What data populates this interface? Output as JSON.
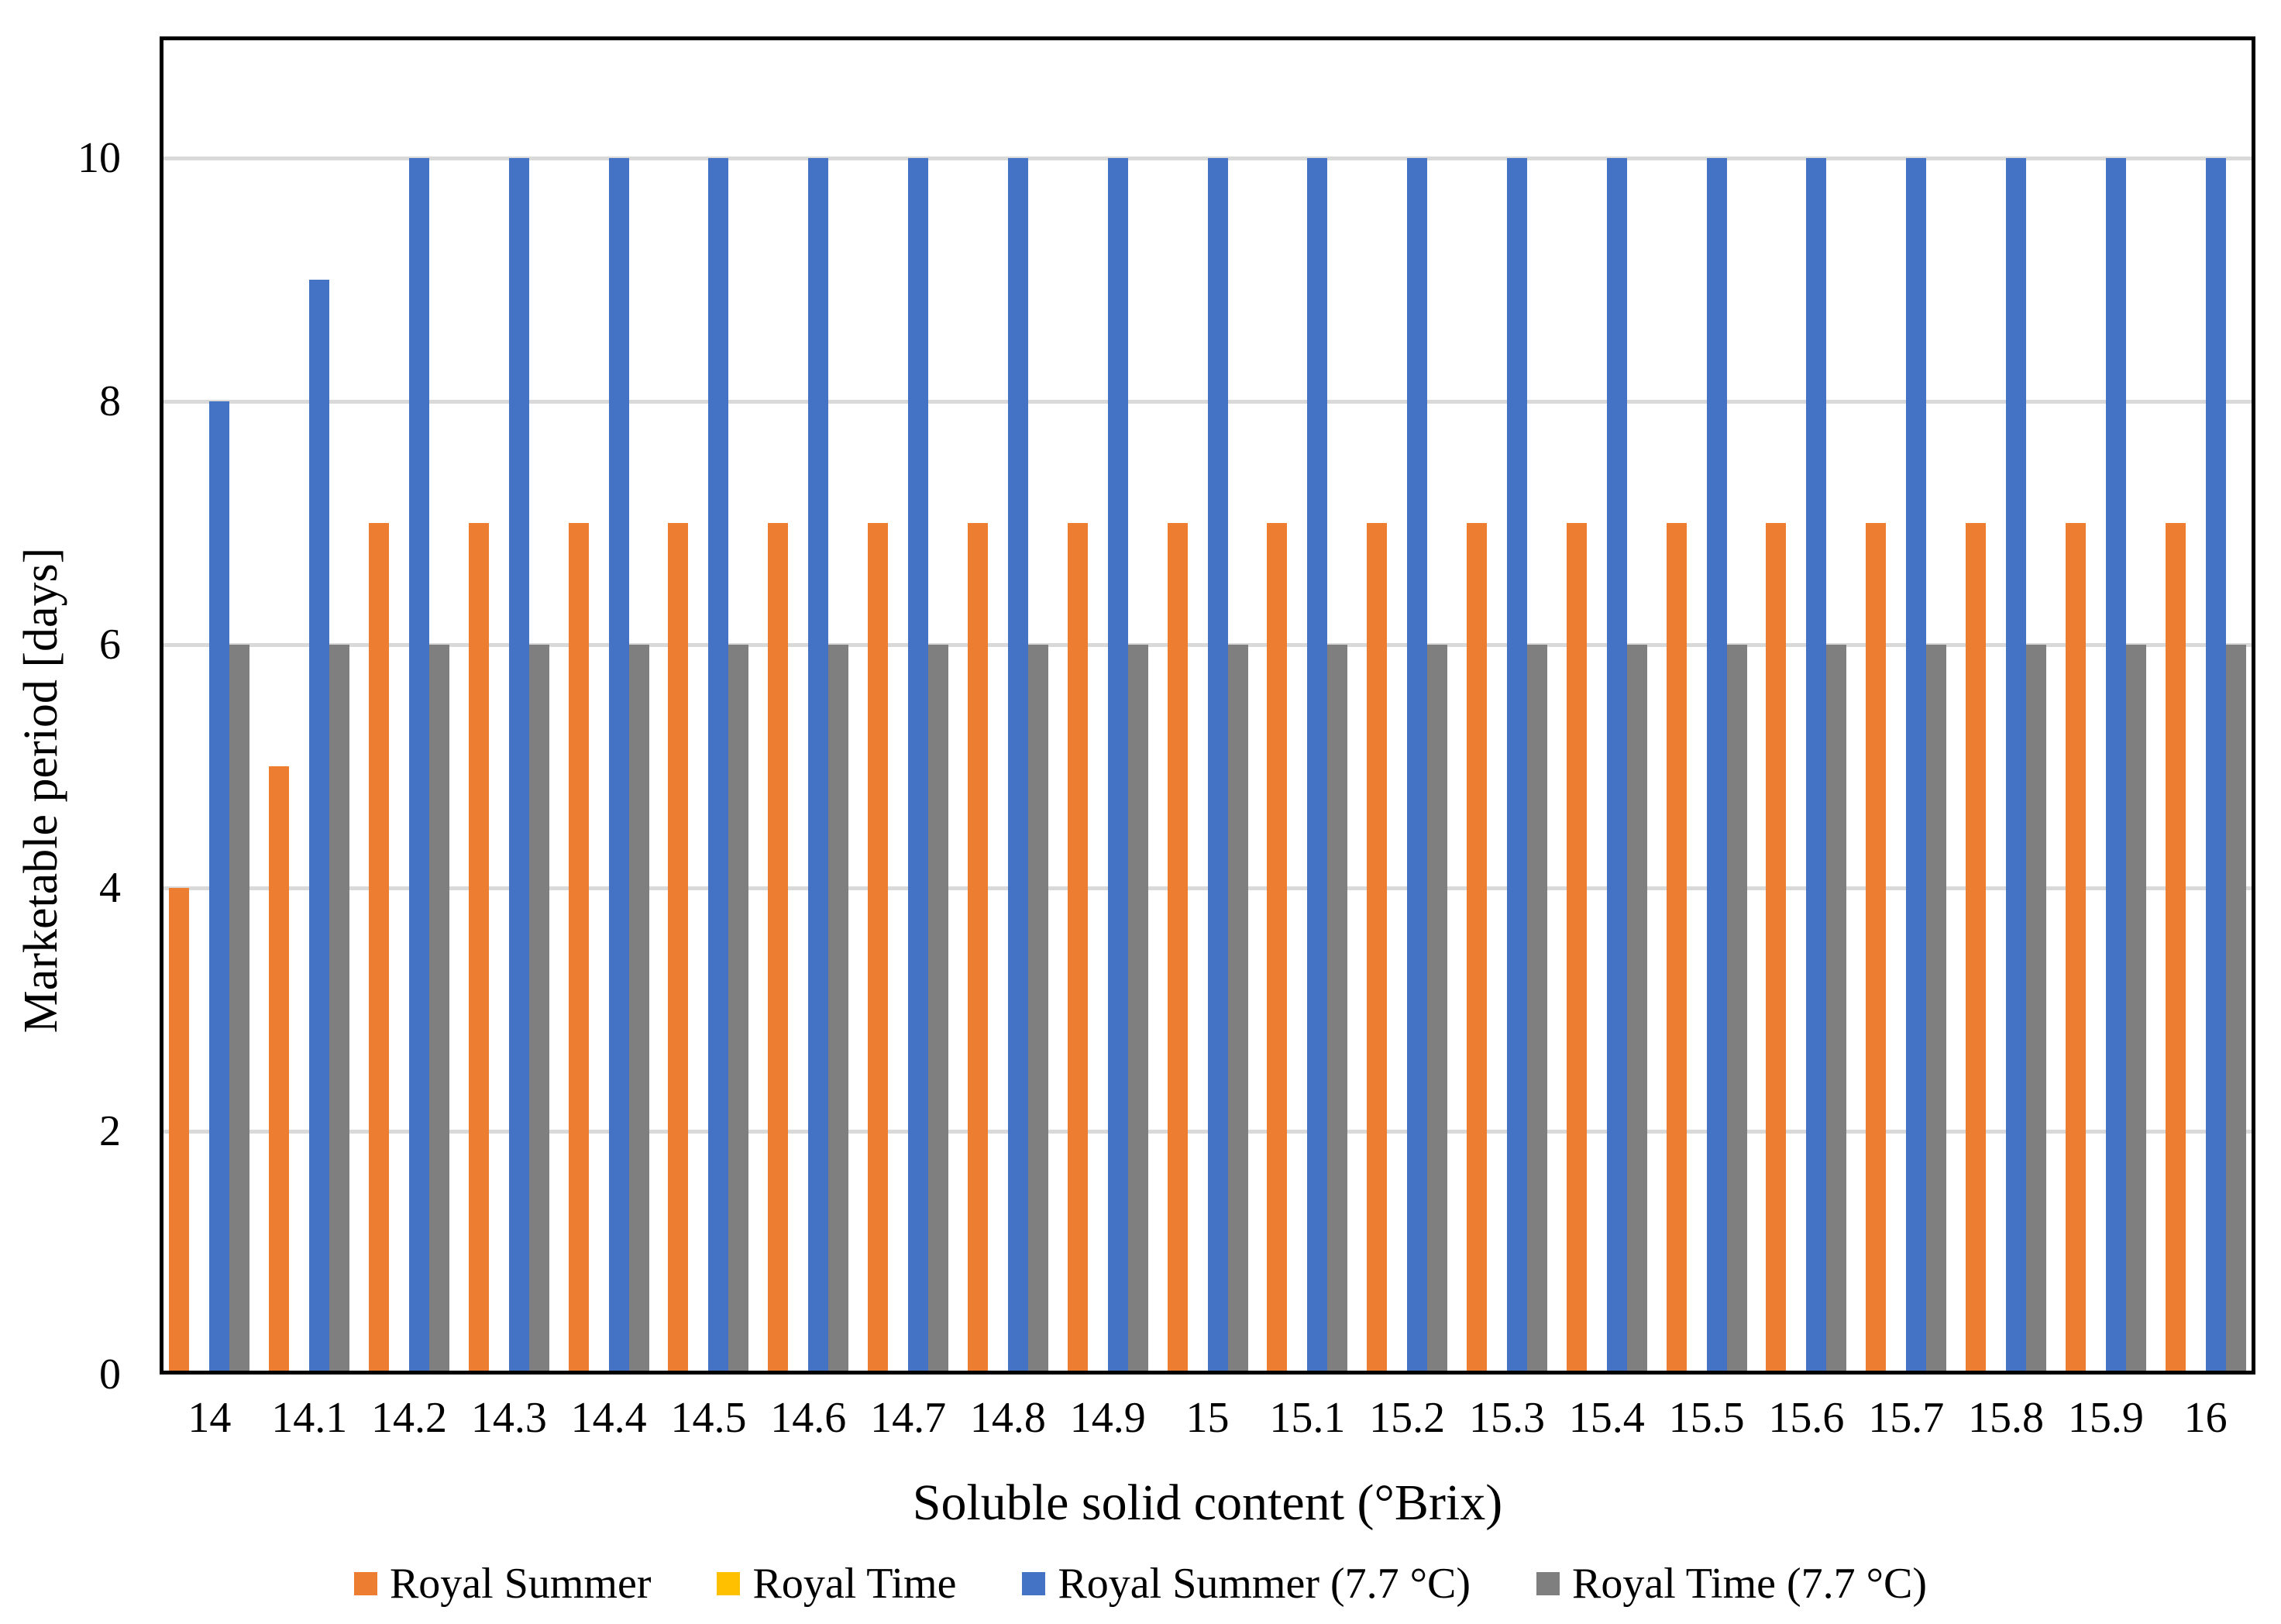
{
  "colors": {
    "gridline": "#D9D9D9",
    "axis": "#000000",
    "background": "#FFFFFF"
  },
  "chart_data": {
    "type": "bar",
    "title": "",
    "xlabel": "Soluble solid content  (°Brix)",
    "ylabel": "Marketable period [days]",
    "categories": [
      "14",
      "14.1",
      "14.2",
      "14.3",
      "14.4",
      "14.5",
      "14.6",
      "14.7",
      "14.8",
      "14.9",
      "15",
      "15.1",
      "15.2",
      "15.3",
      "15.4",
      "15.5",
      "15.6",
      "15.7",
      "15.8",
      "15.9",
      "16"
    ],
    "y_ticks": [
      0,
      2,
      4,
      6,
      8,
      10
    ],
    "ylim": [
      0,
      11
    ],
    "grid": true,
    "legend_position": "bottom",
    "series": [
      {
        "name": "Royal Summer",
        "color": "#ED7D31",
        "values": [
          4,
          5,
          7,
          7,
          7,
          7,
          7,
          7,
          7,
          7,
          7,
          7,
          7,
          7,
          7,
          7,
          7,
          7,
          7,
          7,
          7
        ]
      },
      {
        "name": "Royal Time",
        "color": "#FFC000",
        "values": [
          0,
          0,
          0,
          0,
          0,
          0,
          0,
          0,
          0,
          0,
          0,
          0,
          0,
          0,
          0,
          0,
          0,
          0,
          0,
          0,
          0
        ]
      },
      {
        "name": "Royal Summer (7.7 °C)",
        "color": "#4472C4",
        "values": [
          8,
          9,
          10,
          10,
          10,
          10,
          10,
          10,
          10,
          10,
          10,
          10,
          10,
          10,
          10,
          10,
          10,
          10,
          10,
          10,
          10
        ]
      },
      {
        "name": "Royal Time (7.7 °C)",
        "color": "#7F7F7F",
        "values": [
          6,
          6,
          6,
          6,
          6,
          6,
          6,
          6,
          6,
          6,
          6,
          6,
          6,
          6,
          6,
          6,
          6,
          6,
          6,
          6,
          6
        ]
      }
    ]
  }
}
